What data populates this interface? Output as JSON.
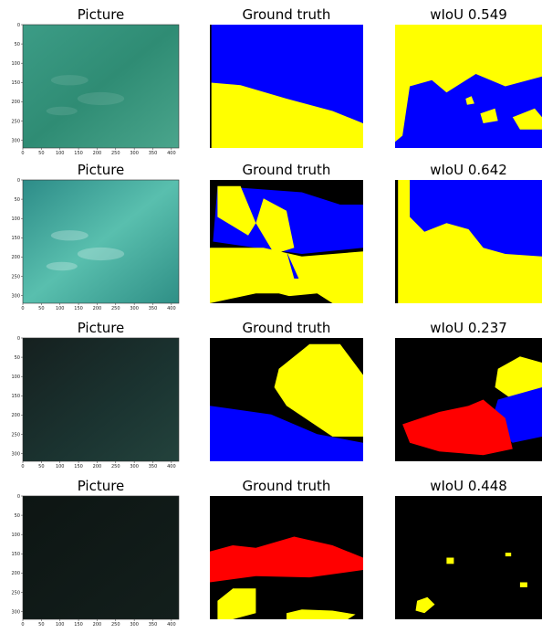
{
  "rows": [
    {
      "picture_title": "Picture",
      "truth_title": "Ground truth",
      "prediction_title": "wIoU 0.549"
    },
    {
      "picture_title": "Picture",
      "truth_title": "Ground truth",
      "prediction_title": "wIoU 0.642"
    },
    {
      "picture_title": "Picture",
      "truth_title": "Ground truth",
      "prediction_title": "wIoU 0.237"
    },
    {
      "picture_title": "Picture",
      "truth_title": "Ground truth",
      "prediction_title": "wIoU 0.448"
    }
  ],
  "picture_axes": {
    "xticks": [
      0,
      50,
      100,
      150,
      200,
      250,
      300,
      350,
      400
    ],
    "yticks": [
      0,
      50,
      100,
      150,
      200,
      250,
      300
    ]
  }
}
